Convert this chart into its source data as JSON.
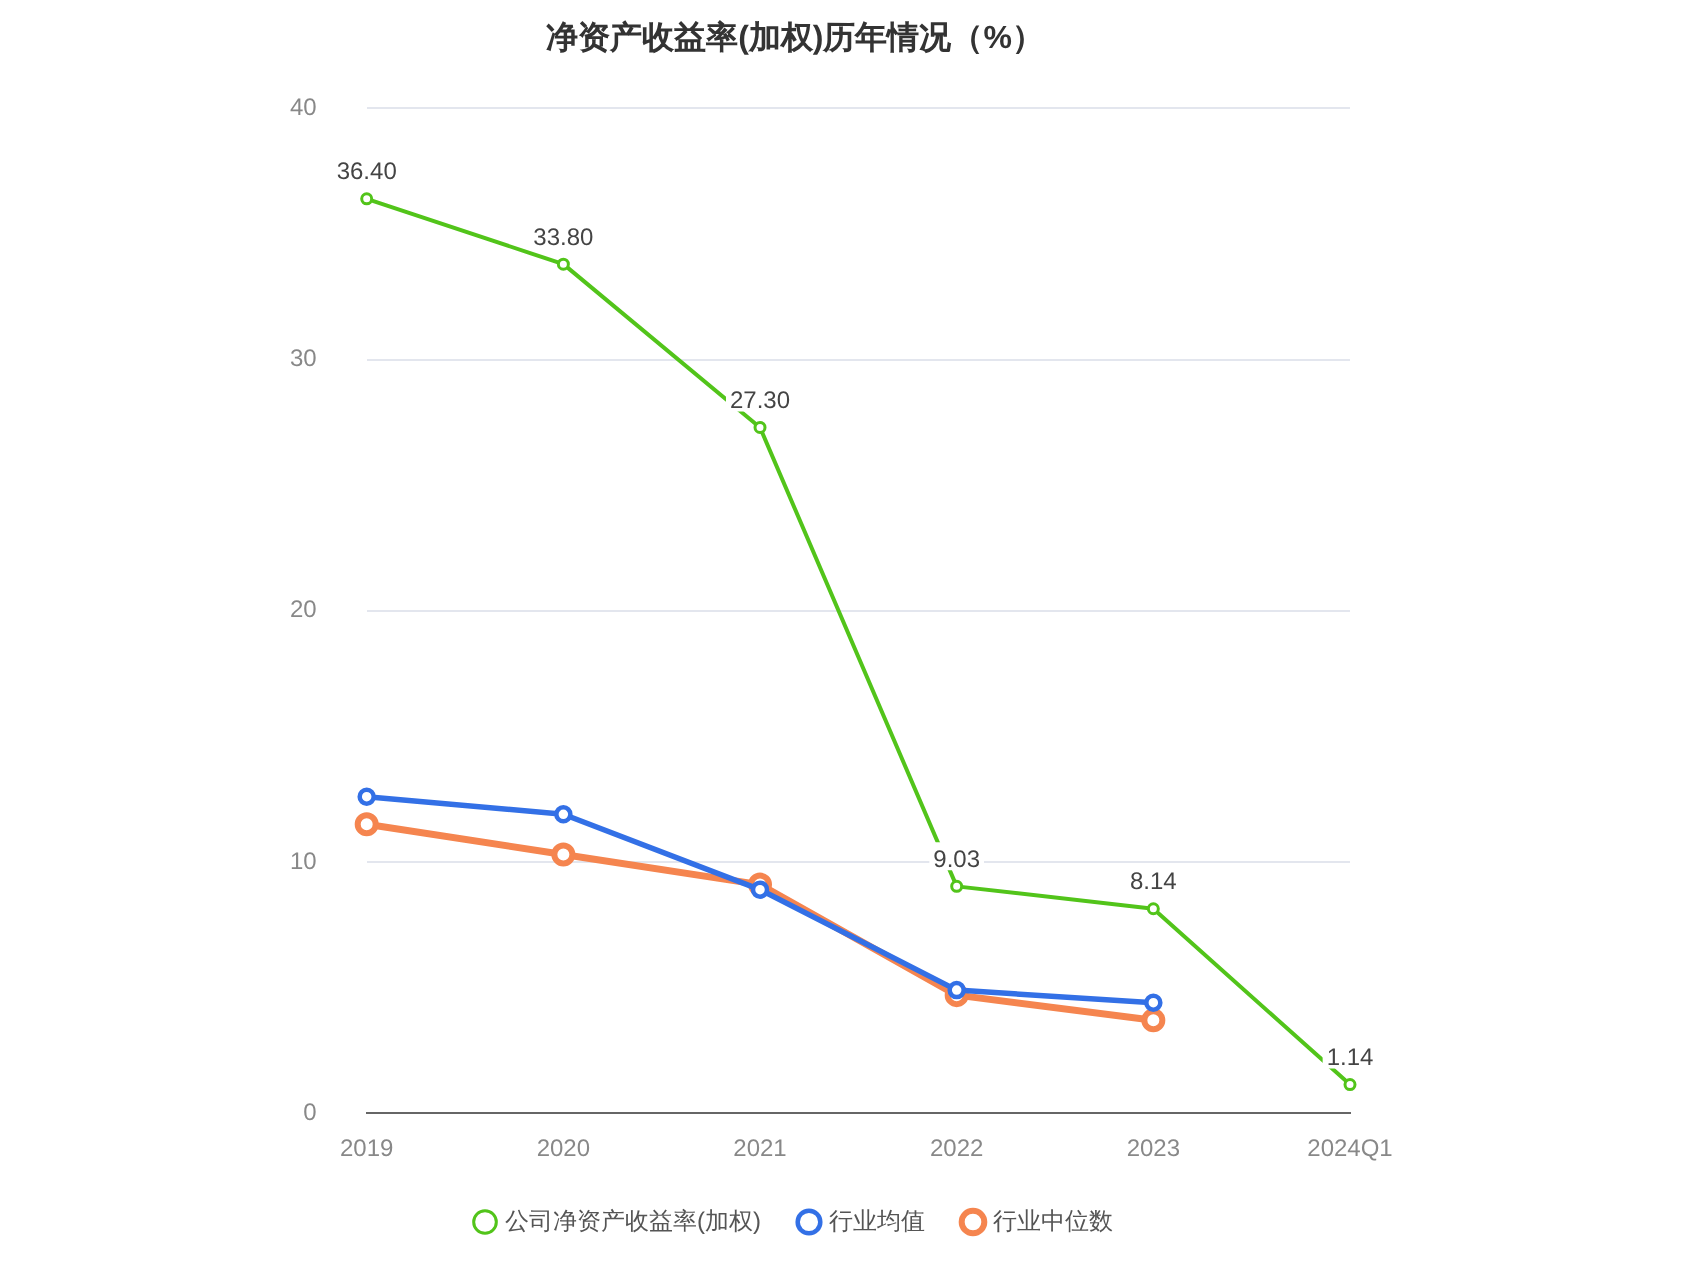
{
  "chart_data": {
    "type": "line",
    "title": "净资产收益率(加权)历年情况（%）",
    "categories": [
      "2019",
      "2020",
      "2021",
      "2022",
      "2023",
      "2024Q1"
    ],
    "series": [
      {
        "name": "公司净资产收益率(加权)",
        "color": "#52c41a",
        "values": [
          36.4,
          33.8,
          27.3,
          9.03,
          8.14,
          1.14
        ],
        "value_labels": [
          "36.40",
          "33.80",
          "27.30",
          "9.03",
          "8.14",
          "1.14"
        ]
      },
      {
        "name": "行业均值",
        "color": "#3370e6",
        "values": [
          12.6,
          11.9,
          8.9,
          4.9,
          4.4,
          null
        ]
      },
      {
        "name": "行业中位数",
        "color": "#f5854f",
        "values": [
          11.5,
          10.3,
          9.1,
          4.7,
          3.7,
          null
        ]
      }
    ],
    "ylim": [
      0,
      40
    ],
    "yticks": [
      0,
      10,
      20,
      30,
      40
    ],
    "grid": "y",
    "legend": "bottom",
    "marker": "circle",
    "line_style": "solid"
  }
}
